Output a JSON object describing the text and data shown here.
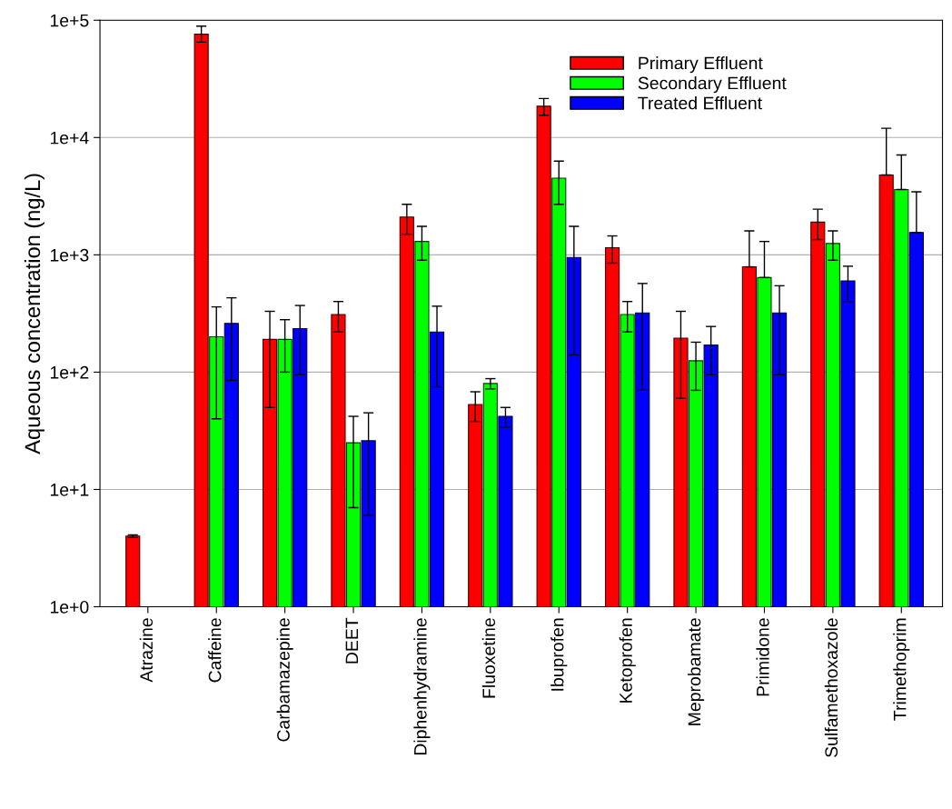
{
  "chart_data": {
    "type": "bar",
    "ylabel": "Aqueous concentration (ng/L)",
    "categories": [
      "Atrazine",
      "Caffeine",
      "Carbamazepine",
      "DEET",
      "Diphenhydramine",
      "Fluoxetine",
      "Ibuprofen",
      "Ketoprofen",
      "Meprobamate",
      "Primidone",
      "Sulfamethoxazole",
      "Trimethoprim"
    ],
    "series": [
      {
        "name": "Primary Effluent",
        "color": "#ff0000",
        "values": [
          4,
          76000,
          190,
          310,
          2100,
          53,
          18500,
          1150,
          195,
          790,
          1900,
          4800
        ],
        "errors": [
          [
            3.9,
            4.1
          ],
          [
            65000,
            89000
          ],
          [
            50,
            330
          ],
          [
            220,
            400
          ],
          [
            1500,
            2700
          ],
          [
            38,
            68
          ],
          [
            15500,
            21500
          ],
          [
            850,
            1450
          ],
          [
            60,
            330
          ],
          [
            790,
            1600
          ],
          [
            1350,
            2450
          ],
          [
            4800,
            12000
          ]
        ]
      },
      {
        "name": "Secondary Effluent",
        "color": "#00ff00",
        "values": [
          null,
          200,
          190,
          25,
          1300,
          80,
          4500,
          310,
          125,
          640,
          1250,
          3600
        ],
        "errors": [
          null,
          [
            40,
            360
          ],
          [
            100,
            280
          ],
          [
            7,
            42
          ],
          [
            900,
            1750
          ],
          [
            72,
            88
          ],
          [
            2700,
            6300
          ],
          [
            220,
            400
          ],
          [
            70,
            180
          ],
          [
            640,
            1300
          ],
          [
            900,
            1600
          ],
          [
            3600,
            7100
          ]
        ]
      },
      {
        "name": "Treated Effluent",
        "color": "#0000ff",
        "values": [
          null,
          260,
          235,
          26,
          220,
          42,
          950,
          320,
          170,
          320,
          600,
          1550
        ],
        "errors": [
          null,
          [
            85,
            430
          ],
          [
            95,
            370
          ],
          [
            6,
            45
          ],
          [
            75,
            365
          ],
          [
            34,
            50
          ],
          [
            140,
            1750
          ],
          [
            70,
            570
          ],
          [
            95,
            245
          ],
          [
            95,
            545
          ],
          [
            400,
            800
          ],
          [
            1550,
            3450
          ]
        ]
      }
    ],
    "log": "y",
    "ylim": [
      1,
      100000
    ],
    "yticks": [
      {
        "value": 1,
        "label": "1e+0"
      },
      {
        "value": 10,
        "label": "1e+1"
      },
      {
        "value": 100,
        "label": "1e+2"
      },
      {
        "value": 1000,
        "label": "1e+3"
      },
      {
        "value": 10000,
        "label": "1e+4"
      },
      {
        "value": 100000,
        "label": "1e+5"
      }
    ],
    "grid": "y",
    "legend": "top right"
  }
}
